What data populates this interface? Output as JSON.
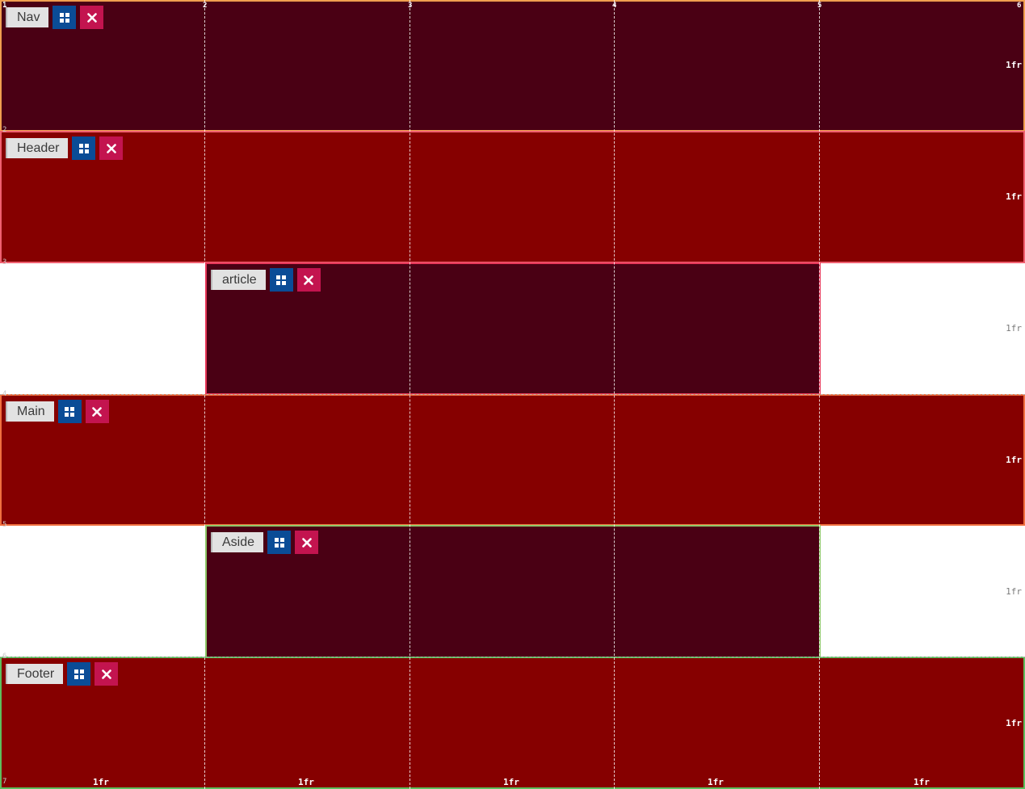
{
  "areas": [
    {
      "label": "Nav",
      "border_color": "#f0a050"
    },
    {
      "label": "Header",
      "border_color": "#f06070"
    },
    {
      "label": "article",
      "border_color": "#e8385a"
    },
    {
      "label": "Main",
      "border_color": "#f07040"
    },
    {
      "label": "Aside",
      "border_color": "#8fc96a"
    },
    {
      "label": "Footer",
      "border_color": "#5cbf5c"
    }
  ],
  "icons": {
    "grid": "grid-icon",
    "close": "close-icon"
  },
  "colors": {
    "area_dark": "#4a0014",
    "area_red": "#860000",
    "grid_button": "#0a4c96",
    "close_button": "#c3144f",
    "label_background": "#e2e2e2"
  },
  "column_lines": [
    "1",
    "2",
    "3",
    "4",
    "5",
    "6"
  ],
  "row_lines": [
    "1",
    "2",
    "3",
    "4",
    "5",
    "6",
    "7"
  ],
  "row_sizes": [
    "1fr",
    "1fr",
    "1fr",
    "1fr",
    "1fr",
    "1fr"
  ],
  "column_sizes": [
    "1fr",
    "1fr",
    "1fr",
    "1fr",
    "1fr"
  ]
}
